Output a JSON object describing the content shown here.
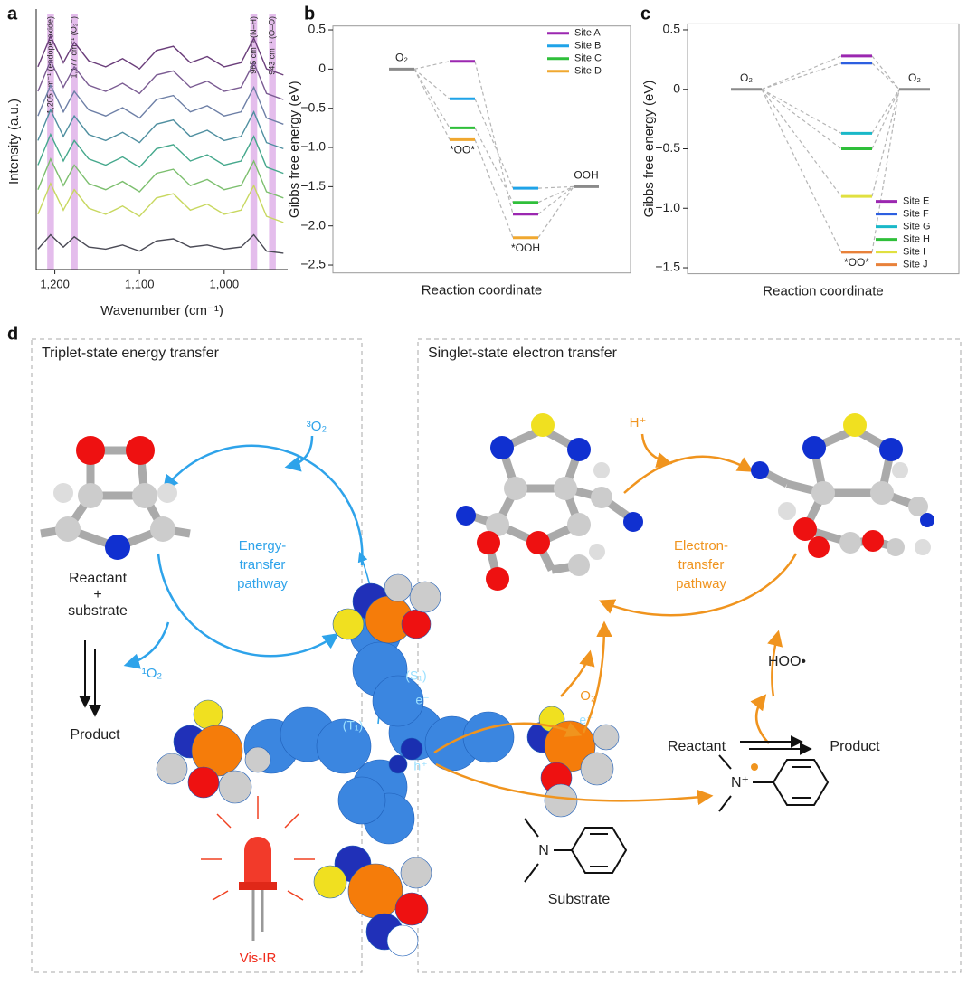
{
  "panel_labels": [
    "a",
    "b",
    "c",
    "d"
  ],
  "chart_data": [
    {
      "type": "line",
      "xlabel": "Wavenumber (cm⁻¹)",
      "ylabel": "Intensity (a.u.)",
      "xlim": [
        1222,
        925
      ],
      "ylim": [
        -0.5,
        12
      ],
      "xticks": [
        {
          "value": 1200,
          "label": "1,200"
        },
        {
          "value": 1100,
          "label": "1,100"
        },
        {
          "value": 1000,
          "label": "1,000"
        }
      ],
      "x": [
        1220,
        1205,
        1190,
        1177,
        1160,
        1140,
        1120,
        1100,
        1080,
        1060,
        1040,
        1020,
        1000,
        980,
        965,
        950,
        930
      ],
      "band_color": "#e4bdec",
      "annotations": [
        {
          "x": 1205,
          "text": "1,205 cm⁻¹ (endoperoxide)"
        },
        {
          "x": 1177,
          "text": "1,177 cm⁻¹ (O₂⁻)"
        },
        {
          "x": 965,
          "text": "965 cm⁻¹ (N–H)"
        },
        {
          "x": 943,
          "text": "943 cm⁻¹ (O–O)"
        }
      ],
      "series": [
        {
          "color": "#6a3d7a",
          "values": [
            9.4,
            10.9,
            9.6,
            10.6,
            9.7,
            9.4,
            9.8,
            9.3,
            10.2,
            10.4,
            9.6,
            9.9,
            9.4,
            9.6,
            10.8,
            9.3,
            9.0
          ]
        },
        {
          "color": "#7b5c93",
          "values": [
            8.2,
            9.7,
            8.4,
            9.4,
            8.5,
            8.2,
            8.6,
            8.1,
            9.0,
            9.2,
            8.4,
            8.7,
            8.2,
            8.4,
            9.6,
            8.1,
            7.8
          ]
        },
        {
          "color": "#6d7fa6",
          "values": [
            7.0,
            8.5,
            7.2,
            8.2,
            7.3,
            7.0,
            7.4,
            6.9,
            7.8,
            8.0,
            7.2,
            7.5,
            7.0,
            7.2,
            8.4,
            6.9,
            6.6
          ]
        },
        {
          "color": "#4f8fa0",
          "values": [
            5.8,
            7.3,
            6.0,
            7.0,
            6.1,
            5.8,
            6.2,
            5.7,
            6.6,
            6.8,
            6.0,
            6.3,
            5.8,
            6.0,
            7.2,
            5.7,
            5.4
          ]
        },
        {
          "color": "#45a88c",
          "values": [
            4.6,
            6.1,
            4.8,
            5.8,
            4.9,
            4.6,
            5.0,
            4.5,
            5.4,
            5.6,
            4.8,
            5.1,
            4.6,
            4.8,
            6.0,
            4.5,
            4.2
          ]
        },
        {
          "color": "#7cbf6e",
          "values": [
            3.4,
            4.9,
            3.6,
            4.6,
            3.7,
            3.4,
            3.8,
            3.3,
            4.2,
            4.4,
            3.6,
            3.9,
            3.4,
            3.6,
            4.8,
            3.3,
            3.0
          ]
        },
        {
          "color": "#c8d860",
          "values": [
            2.2,
            3.7,
            2.4,
            3.4,
            2.5,
            2.2,
            2.6,
            2.1,
            3.0,
            3.2,
            2.4,
            2.7,
            2.2,
            2.4,
            3.6,
            2.1,
            1.8
          ]
        },
        {
          "color": "#4a4a55",
          "values": [
            0.5,
            1.2,
            0.6,
            1.1,
            0.6,
            0.5,
            0.7,
            0.4,
            0.9,
            1.0,
            0.6,
            0.7,
            0.5,
            0.6,
            1.2,
            0.4,
            0.3
          ]
        }
      ]
    },
    {
      "type": "energy-level",
      "xlabel": "Reaction coordinate",
      "ylabel": "Gibbs free energy (eV)",
      "categories": [
        "O₂",
        "*OO*",
        "*OOH",
        "OOH"
      ],
      "ylim": [
        -2.6,
        0.55
      ],
      "yticks": [
        0.5,
        0,
        {
          "value": -0.5,
          "label": "−0.5"
        },
        {
          "value": -1,
          "label": "−1.0"
        },
        {
          "value": -1.5,
          "label": "−1.5"
        },
        {
          "value": -2,
          "label": "−2.0"
        },
        {
          "value": -2.5,
          "label": "−2.5"
        }
      ],
      "legend": "upper right",
      "series": [
        {
          "color": "#8a8a8a",
          "values": [
            0,
            null,
            null,
            -1.5
          ]
        },
        {
          "name": "Site A",
          "color": "#9b27b0",
          "values": [
            null,
            0.1,
            -1.85,
            null
          ]
        },
        {
          "name": "Site B",
          "color": "#1fa3e8",
          "values": [
            null,
            -0.38,
            -1.52,
            null
          ]
        },
        {
          "name": "Site C",
          "color": "#2fbf3a",
          "values": [
            null,
            -0.75,
            -1.7,
            null
          ]
        },
        {
          "name": "Site D",
          "color": "#f0a830",
          "values": [
            null,
            -0.9,
            -2.15,
            null
          ]
        }
      ]
    },
    {
      "type": "energy-level",
      "xlabel": "Reaction coordinate",
      "ylabel": "Gibbs free energy (eV)",
      "categories": [
        "O₂",
        "*OO*",
        "O₂"
      ],
      "ylim": [
        -1.55,
        0.55
      ],
      "yticks": [
        0.5,
        0,
        {
          "value": -0.5,
          "label": "−0.5"
        },
        {
          "value": -1,
          "label": "−1.0"
        },
        {
          "value": -1.5,
          "label": "−1.5"
        }
      ],
      "legend": "lower right",
      "series": [
        {
          "color": "#8a8a8a",
          "values": [
            0,
            null,
            0
          ]
        },
        {
          "name": "Site E",
          "color": "#9b27b0",
          "values": [
            null,
            0.28,
            null
          ]
        },
        {
          "name": "Site F",
          "color": "#2d5fe0",
          "values": [
            null,
            0.22,
            null
          ]
        },
        {
          "name": "Site G",
          "color": "#1ab8c8",
          "values": [
            null,
            -0.37,
            null
          ]
        },
        {
          "name": "Site H",
          "color": "#2fbf3a",
          "values": [
            null,
            -0.5,
            null
          ]
        },
        {
          "name": "Site I",
          "color": "#e0e040",
          "values": [
            null,
            -0.9,
            null
          ]
        },
        {
          "name": "Site J",
          "color": "#e8813a",
          "values": [
            null,
            -1.37,
            null
          ]
        }
      ]
    }
  ],
  "diagram": {
    "left_title": "Triplet-state energy transfer",
    "right_title": "Singlet-state electron transfer",
    "triplet_o2": "³O₂",
    "energy_pathway": [
      "Energy-",
      "transfer",
      "pathway"
    ],
    "reactant_substrate": [
      "Reactant",
      "+",
      "substrate"
    ],
    "singlet_o2": "¹O₂",
    "product_left": "Product",
    "t1": "(T₁)",
    "s1": "(S₁)",
    "electron_left": "e⁻",
    "hole": "h⁺",
    "electron_right": "e⁻",
    "light": "Vis-IR",
    "proton": "H⁺",
    "electron_pathway": [
      "Electron-",
      "transfer",
      "pathway"
    ],
    "o2": "O₂",
    "hoo": "HOO•",
    "reactant": "Reactant",
    "product_right": "Product",
    "n_cation": "N⁺",
    "n": "N",
    "substrate": "Substrate"
  }
}
